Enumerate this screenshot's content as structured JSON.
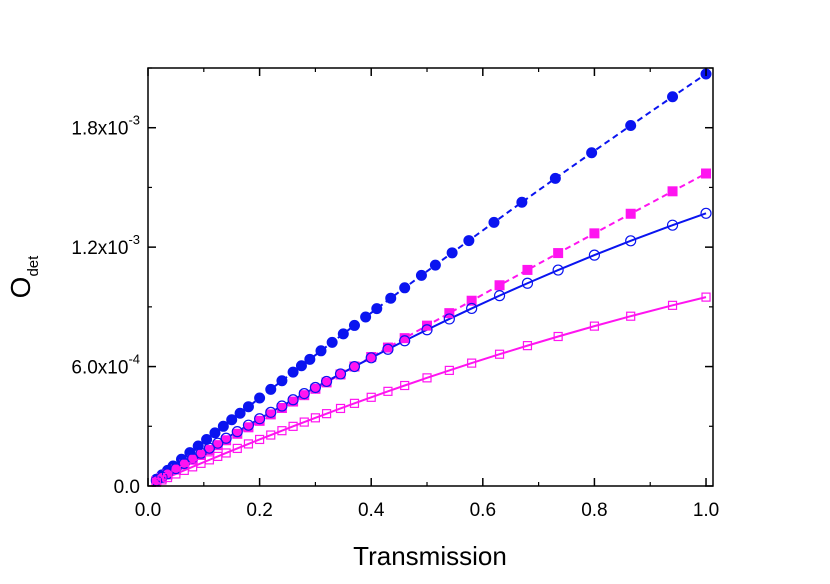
{
  "chart_data": {
    "type": "scatter-line",
    "xlabel": "Transmission",
    "ylabel": {
      "text": "O",
      "subscript": "det"
    },
    "xlim": [
      0,
      1.0125
    ],
    "ylim": [
      0,
      0.0021
    ],
    "xticks": [
      {
        "value": 0,
        "label": "0.0"
      },
      0.2,
      0.4,
      0.6,
      0.8,
      {
        "value": 1,
        "label": "1.0"
      }
    ],
    "xminorticks": [
      0.1,
      0.3,
      0.5,
      0.7,
      0.9
    ],
    "yticks": [
      {
        "value": 0,
        "label": "0.0"
      },
      {
        "value": 0.0006,
        "label": "6.0x10",
        "exponent": "-4"
      },
      {
        "value": 0.0012,
        "label": "1.2x10",
        "exponent": "-3"
      },
      {
        "value": 0.0018,
        "label": "1.8x10",
        "exponent": "-3"
      }
    ],
    "yminorticks": [
      0.0003,
      0.0009,
      0.0015,
      0.0021
    ],
    "series": [
      {
        "color": "#0a14f0",
        "marker": "circle",
        "filled": true,
        "linestyle": "dashed",
        "x": [
          0.015,
          0.025,
          0.035,
          0.045,
          0.06,
          0.075,
          0.09,
          0.105,
          0.12,
          0.135,
          0.15,
          0.165,
          0.18,
          0.2,
          0.22,
          0.24,
          0.26,
          0.275,
          0.29,
          0.31,
          0.33,
          0.35,
          0.37,
          0.39,
          0.41,
          0.435,
          0.46,
          0.49,
          0.515,
          0.545,
          0.575,
          0.62,
          0.67,
          0.73,
          0.795,
          0.865,
          0.94,
          1.0
        ],
        "values": [
          3.36e-05,
          5.6e-05,
          7.84e-05,
          0.0001006,
          0.0001341,
          0.0001674,
          0.0002007,
          0.0002338,
          0.0002669,
          0.0002999,
          0.0003329,
          0.0003656,
          0.0003984,
          0.000442,
          0.0004854,
          0.0005287,
          0.0005719,
          0.0006042,
          0.0006364,
          0.0006792,
          0.0007218,
          0.0007644,
          0.0008067,
          0.000849,
          0.0008911,
          0.0009435,
          0.0009957,
          0.0010581,
          0.0011098,
          0.0011715,
          0.001233,
          0.0013246,
          0.0014256,
          0.0015456,
          0.0016742,
          0.001811,
          0.0019557,
          0.00207
        ]
      },
      {
        "color": "#ff14f0",
        "marker": "square",
        "filled": true,
        "linestyle": "dashed",
        "x": [
          0.015,
          0.025,
          0.035,
          0.05,
          0.065,
          0.08,
          0.095,
          0.11,
          0.125,
          0.14,
          0.16,
          0.18,
          0.2,
          0.22,
          0.24,
          0.26,
          0.28,
          0.3,
          0.32,
          0.345,
          0.37,
          0.4,
          0.43,
          0.46,
          0.5,
          0.54,
          0.58,
          0.63,
          0.68,
          0.735,
          0.8,
          0.865,
          0.94,
          1.0
        ],
        "values": [
          2.48e-05,
          4.13e-05,
          5.78e-05,
          8.24e-05,
          0.0001071,
          0.0001317,
          0.0001563,
          0.0001808,
          0.0002053,
          0.0002298,
          0.0002624,
          0.0002948,
          0.0003273,
          0.0003597,
          0.0003919,
          0.0004242,
          0.0004563,
          0.0004884,
          0.0005205,
          0.0005604,
          0.0006002,
          0.0006479,
          0.0006955,
          0.0007428,
          0.0008057,
          0.0008684,
          0.0009308,
          0.0010085,
          0.0010856,
          0.0011702,
          0.0012693,
          0.0013677,
          0.0014805,
          0.00157
        ]
      },
      {
        "color": "#0a14f0",
        "marker": "circle",
        "filled": false,
        "linestyle": "solid",
        "x": [
          0.015,
          0.025,
          0.035,
          0.05,
          0.065,
          0.08,
          0.095,
          0.11,
          0.125,
          0.14,
          0.16,
          0.18,
          0.2,
          0.22,
          0.24,
          0.26,
          0.28,
          0.3,
          0.32,
          0.345,
          0.37,
          0.4,
          0.43,
          0.46,
          0.5,
          0.54,
          0.58,
          0.63,
          0.68,
          0.735,
          0.8,
          0.865,
          0.94,
          1.0
        ],
        "values": [
          2.65e-05,
          4.4e-05,
          6.15e-05,
          8.75e-05,
          0.0001134,
          0.000139,
          0.0001645,
          0.0001899,
          0.000215,
          0.00024,
          0.000273,
          0.0003056,
          0.000338,
          0.00037,
          0.0004018,
          0.0004332,
          0.0004642,
          0.000495,
          0.0005254,
          0.000563,
          0.0006001,
          0.000644,
          0.0006871,
          0.0007296,
          0.000785,
          0.0008392,
          0.000892,
          0.0009563,
          0.0010186,
          0.0010849,
          0.00116,
          0.0012318,
          0.0013104,
          0.00137
        ]
      },
      {
        "color": "#ff14f0",
        "marker": "square",
        "filled": false,
        "linestyle": "solid",
        "x": [
          0.015,
          0.025,
          0.035,
          0.05,
          0.065,
          0.08,
          0.095,
          0.11,
          0.125,
          0.14,
          0.16,
          0.18,
          0.2,
          0.22,
          0.24,
          0.26,
          0.28,
          0.3,
          0.32,
          0.345,
          0.37,
          0.4,
          0.43,
          0.46,
          0.5,
          0.54,
          0.58,
          0.63,
          0.68,
          0.735,
          0.8,
          0.865,
          0.94,
          1.0
        ],
        "values": [
          1.83e-05,
          3.04e-05,
          4.25e-05,
          6.05e-05,
          7.84e-05,
          9.62e-05,
          0.0001138,
          0.0001313,
          0.0001487,
          0.000166,
          0.0001888,
          0.0002114,
          0.0002338,
          0.000256,
          0.0002779,
          0.0002997,
          0.0003212,
          0.0003425,
          0.0003635,
          0.0003896,
          0.0004152,
          0.0004456,
          0.0004755,
          0.0005049,
          0.0005433,
          0.0005808,
          0.0006174,
          0.000662,
          0.0007052,
          0.0007511,
          0.0008032,
          0.000853,
          0.0009076,
          0.000949
        ]
      }
    ]
  }
}
